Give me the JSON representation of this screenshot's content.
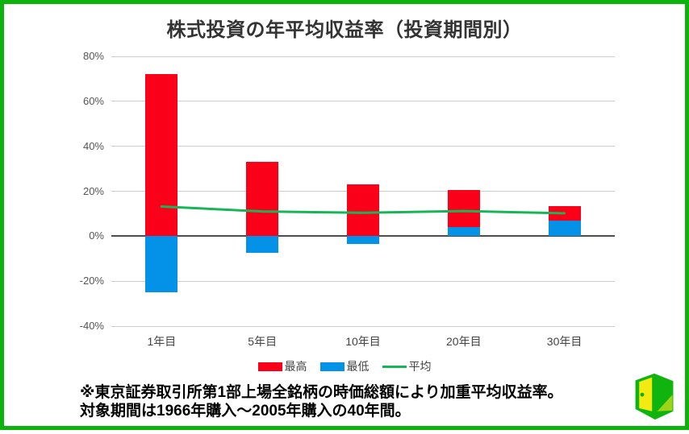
{
  "page": {
    "frame_border_color": "#0db30d",
    "background": "#ffffff"
  },
  "chart_data": {
    "type": "bar",
    "title": "株式投資の年平均収益率（投資期間別）",
    "categories": [
      "1年目",
      "5年目",
      "10年目",
      "20年目",
      "30年目"
    ],
    "series": [
      {
        "name": "最高",
        "type": "bar",
        "color": "#fa0019",
        "values": [
          72,
          33,
          23,
          20.5,
          13.2
        ]
      },
      {
        "name": "最低",
        "type": "bar",
        "color": "#0492e9",
        "values": [
          -25,
          -7.4,
          -3.6,
          4,
          6.9
        ]
      },
      {
        "name": "平均",
        "type": "line",
        "color": "#17b558",
        "values": [
          13.2,
          11,
          10.4,
          11.2,
          10.2
        ]
      }
    ],
    "ylim": [
      -40,
      80
    ],
    "ytick_step": 20,
    "ytick_labels": [
      "80%",
      "60%",
      "40%",
      "20%",
      "0%",
      "-20%",
      "-40%"
    ],
    "xlabel": "",
    "ylabel": "",
    "grid": true,
    "legend_position": "bottom",
    "gridline_color": "#cccccc",
    "zero_line_color": "#4d4d4d"
  },
  "notes": {
    "line1": "※東京証券取引所第1部上場全銘柄の時価総額により加重平均収益率。",
    "line2": "対象期間は1966年購入～2005年購入の40年間。"
  },
  "logo": {
    "name": "open-door-logo",
    "green": "#0fb40f",
    "yellow": "#f2ea10",
    "light_green": "#9ed317"
  }
}
